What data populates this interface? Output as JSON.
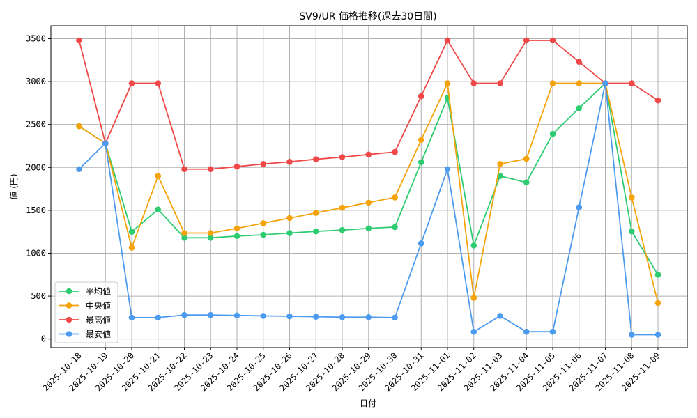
{
  "chart_data": {
    "type": "line",
    "title": "SV9/UR 価格推移(過去30日間)",
    "xlabel": "日付",
    "ylabel": "値 (円)",
    "ylim": [
      -100,
      3650
    ],
    "yticks": [
      0,
      500,
      1000,
      1500,
      2000,
      2500,
      3000,
      3500
    ],
    "grid": true,
    "legend_position": "lower-left",
    "categories": [
      "2025-10-18",
      "2025-10-19",
      "2025-10-20",
      "2025-10-21",
      "2025-10-22",
      "2025-10-23",
      "2025-10-24",
      "2025-10-25",
      "2025-10-26",
      "2025-10-27",
      "2025-10-28",
      "2025-10-29",
      "2025-10-30",
      "2025-10-31",
      "2025-11-01",
      "2025-11-02",
      "2025-11-03",
      "2025-11-04",
      "2025-11-05",
      "2025-11-06",
      "2025-11-07",
      "2025-11-08",
      "2025-11-09"
    ],
    "series": [
      {
        "name": "平均値",
        "color": "#2ecc71",
        "values": [
          2480,
          2280,
          1250,
          1510,
          1180,
          1180,
          1200,
          1215,
          1235,
          1255,
          1270,
          1290,
          1305,
          2060,
          2810,
          1090,
          1900,
          1825,
          2390,
          2690,
          2980,
          1255,
          750
        ]
      },
      {
        "name": "中央値",
        "color": "#f5a30a",
        "values": [
          2480,
          2280,
          1065,
          1900,
          1235,
          1235,
          1290,
          1350,
          1410,
          1470,
          1530,
          1590,
          1650,
          2320,
          2980,
          480,
          2040,
          2100,
          2980,
          2980,
          2980,
          1650,
          420
        ]
      },
      {
        "name": "最高値",
        "color": "#f04848",
        "values": [
          3480,
          2280,
          2980,
          2980,
          1980,
          1980,
          2010,
          2040,
          2065,
          2095,
          2120,
          2150,
          2180,
          2830,
          3480,
          2980,
          2980,
          3480,
          3480,
          3230,
          2980,
          2980,
          2780
        ]
      },
      {
        "name": "最安値",
        "color": "#4c9bef",
        "values": [
          1980,
          2280,
          250,
          250,
          280,
          280,
          275,
          270,
          265,
          260,
          255,
          255,
          250,
          1115,
          1980,
          85,
          270,
          85,
          85,
          1535,
          2980,
          50,
          50
        ]
      }
    ]
  }
}
